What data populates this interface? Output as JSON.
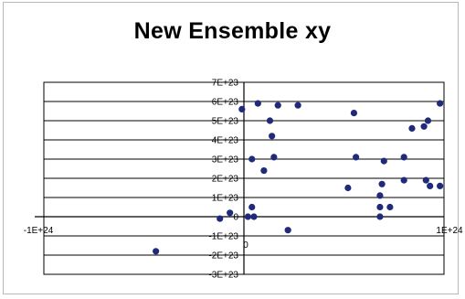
{
  "chart_data": {
    "type": "scatter",
    "title": "New Ensemble xy",
    "xlabel": "",
    "ylabel": "",
    "xlim": [
      -1e+24,
      1e+24
    ],
    "ylim": [
      -3e+23,
      7e+23
    ],
    "grid": {
      "x": false,
      "y": true
    },
    "legend": "none",
    "marker_color": "#1f2a7a",
    "x_tick_labels": [
      "-1E+24",
      "0",
      "1E+24"
    ],
    "y_tick_labels": [
      "-3E+23",
      "-2E+23",
      "-1E+23",
      "0",
      "1E+23",
      "2E+23",
      "3E+23",
      "4E+23",
      "5E+23",
      "6E+23",
      "7E+23"
    ],
    "series": [
      {
        "points": [
          {
            "x": -1e+22,
            "y": 5.6e+23
          },
          {
            "x": 7e+22,
            "y": 5.9e+23
          },
          {
            "x": 1.7e+23,
            "y": 5.8e+23
          },
          {
            "x": 2.7e+23,
            "y": 5.8e+23
          },
          {
            "x": 1.3e+23,
            "y": 5e+23
          },
          {
            "x": 5.5e+23,
            "y": 5.4e+23
          },
          {
            "x": 1.4e+23,
            "y": 4.2e+23
          },
          {
            "x": 4e+22,
            "y": 3e+23
          },
          {
            "x": 1.5e+23,
            "y": 3.1e+23
          },
          {
            "x": 1e+23,
            "y": 2.4e+23
          },
          {
            "x": 5.6e+23,
            "y": 3.1e+23
          },
          {
            "x": 7e+23,
            "y": 2.9e+23
          },
          {
            "x": 8e+23,
            "y": 3.1e+23
          },
          {
            "x": 8.4e+23,
            "y": 4.6e+23
          },
          {
            "x": 9e+23,
            "y": 4.7e+23
          },
          {
            "x": 9.2e+23,
            "y": 5e+23
          },
          {
            "x": 9.8e+23,
            "y": 5.9e+23
          },
          {
            "x": 6.9e+23,
            "y": 1.7e+23
          },
          {
            "x": 8e+23,
            "y": 1.9e+23
          },
          {
            "x": 9.1e+23,
            "y": 1.9e+23
          },
          {
            "x": 9.3e+23,
            "y": 1.6e+23
          },
          {
            "x": 9.8e+23,
            "y": 1.6e+23
          },
          {
            "x": 5.2e+23,
            "y": 1.5e+23
          },
          {
            "x": 6.8e+23,
            "y": 1.1e+23
          },
          {
            "x": 6.8e+23,
            "y": 5e+22
          },
          {
            "x": 7.3e+23,
            "y": 5e+22
          },
          {
            "x": 6.8e+23,
            "y": 0.0
          },
          {
            "x": 4e+22,
            "y": 5e+22
          },
          {
            "x": 5e+22,
            "y": 0.0
          },
          {
            "x": 2e+22,
            "y": 0.0
          },
          {
            "x": -7e+22,
            "y": 2e+22
          },
          {
            "x": -1.2e+23,
            "y": -1e+22
          },
          {
            "x": 2.2e+23,
            "y": -7e+22
          },
          {
            "x": -4.4e+23,
            "y": -1.8e+23
          }
        ]
      }
    ]
  }
}
